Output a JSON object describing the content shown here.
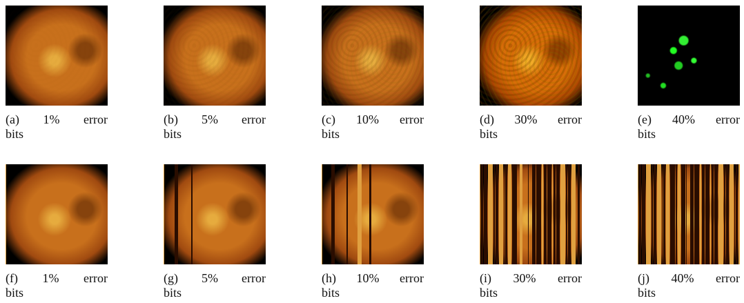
{
  "panels": [
    [
      "(a) 1% error bits",
      "(b) 5% error bits",
      "(c) 10% error bits",
      "(d) 30% error bits",
      "(e) 40% error bits"
    ],
    [
      "(f) 1% error bits",
      "(g) 5% error bits",
      "(h) 10% error bits",
      "(i) 30% error bits",
      "(j) 40% error bits"
    ]
  ]
}
